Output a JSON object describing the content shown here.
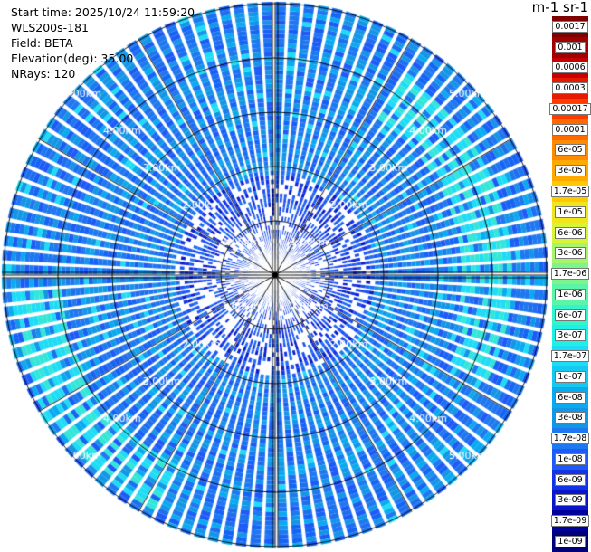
{
  "header": {
    "start_time": "Start time: 2025/10/24 11:59:20",
    "instrument": "WLS200s-181",
    "field": "Field: BETA",
    "elevation": "Elevation(deg): 35.00",
    "nrays": "NRays: 120"
  },
  "colorbar": {
    "unit": "m-1 sr-1",
    "labels": [
      "0.0017",
      "0.001",
      "0.0006",
      "0.0003",
      "0.00017",
      "0.0001",
      "6e-05",
      "3e-05",
      "1.7e-05",
      "1e-05",
      "6e-06",
      "3e-06",
      "1.7e-06",
      "1e-06",
      "6e-07",
      "3e-07",
      "1.7e-07",
      "1e-07",
      "6e-08",
      "3e-08",
      "1.7e-08",
      "1e-08",
      "6e-09",
      "3e-09",
      "1.7e-09",
      "1e-09"
    ],
    "colors": [
      "#7f0000",
      "#a00000",
      "#c80000",
      "#e61a00",
      "#ff3c00",
      "#ff6a00",
      "#ff8c00",
      "#ffaa00",
      "#ffc800",
      "#f0e61e",
      "#d7f536",
      "#a6f56a",
      "#7cf58a",
      "#5cf5a8",
      "#33f5cc",
      "#1ef0e6",
      "#1edcf5",
      "#14c8f0",
      "#0aaaf0",
      "#1496e6",
      "#1e78f0",
      "#1e5af5",
      "#1432e6",
      "#0a14c8",
      "#00009a",
      "#000078"
    ]
  },
  "ppi": {
    "nrays": 120,
    "rings": [
      "1.00km",
      "2.00km",
      "3.00km",
      "4.00km",
      "5.00km"
    ]
  }
}
